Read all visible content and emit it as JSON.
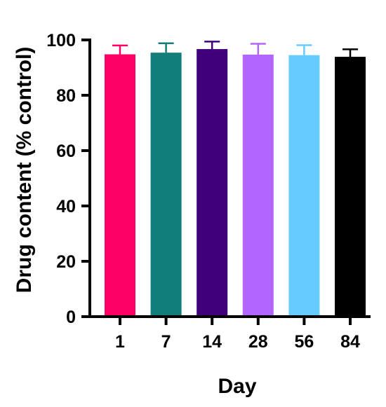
{
  "chart_data": {
    "type": "bar",
    "title": "",
    "xlabel": "Day",
    "ylabel": "Drug content (% control)",
    "categories": [
      "1",
      "7",
      "14",
      "28",
      "56",
      "84"
    ],
    "values": [
      94.8,
      95.4,
      96.7,
      94.7,
      94.5,
      93.9
    ],
    "error": [
      3.2,
      3.4,
      2.7,
      3.9,
      3.6,
      2.7
    ],
    "colors": [
      "#ff0066",
      "#127d7b",
      "#40007b",
      "#b266ff",
      "#66ccff",
      "#000000"
    ],
    "ylim": [
      0,
      100
    ],
    "yticks": [
      "0",
      "20",
      "40",
      "60",
      "80",
      "100"
    ],
    "grid": false,
    "legend": "none",
    "error_bars": "upper"
  }
}
